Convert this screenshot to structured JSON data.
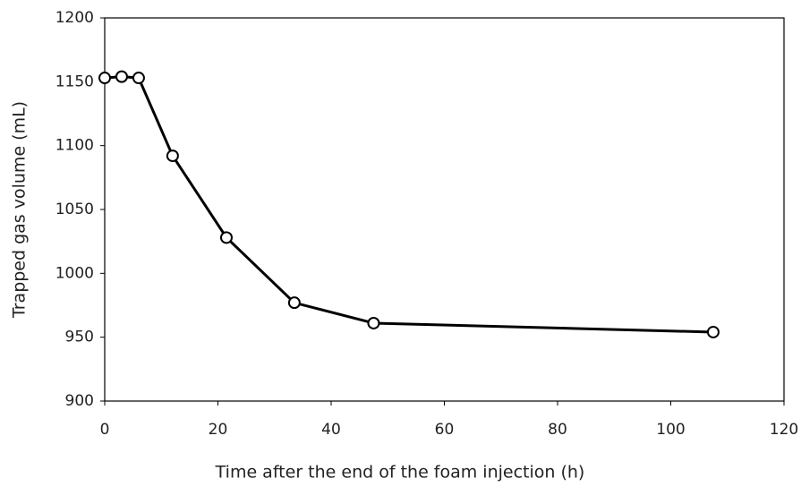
{
  "chart_data": {
    "type": "line",
    "x_label": "Time after the end of the foam injection (h)",
    "y_label": "Trapped gas volume (mL)",
    "series": [
      {
        "color": "#000000",
        "x": [
          0,
          3,
          6,
          12,
          21.5,
          33.5,
          47.5,
          107.5
        ],
        "values": [
          1153,
          1154,
          1153,
          1092,
          1028,
          977,
          961,
          954
        ]
      }
    ],
    "xlim": [
      0,
      120
    ],
    "xticks": [
      0,
      20,
      40,
      60,
      80,
      100,
      120
    ],
    "ylim": [
      900,
      1200
    ],
    "yticks": [
      900,
      950,
      1000,
      1050,
      1100,
      1150,
      1200
    ],
    "grid": false
  }
}
